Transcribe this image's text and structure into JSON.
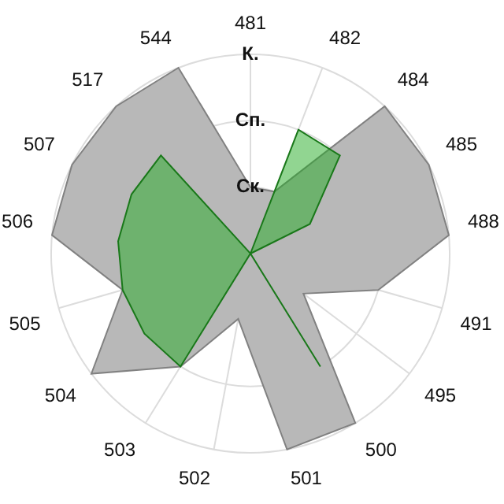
{
  "chart_data": {
    "type": "radar",
    "categories": [
      "481",
      "482",
      "484",
      "485",
      "488",
      "491",
      "495",
      "500",
      "501",
      "502",
      "503",
      "504",
      "505",
      "506",
      "507",
      "517",
      "544"
    ],
    "series": [
      {
        "color": "#b8b8b8",
        "values": [
          1,
          1,
          3,
          3,
          3,
          2,
          1,
          3,
          3,
          1,
          2,
          3,
          2,
          3,
          3,
          3,
          3
        ]
      },
      {
        "color": "#23ac23",
        "values": [
          0,
          2,
          2,
          1,
          0,
          0,
          0,
          2,
          0,
          0,
          2,
          2,
          2,
          2,
          2,
          2,
          0
        ]
      }
    ],
    "ylim": [
      0,
      3
    ],
    "yticks": [
      {
        "value": 1,
        "label": "Ск."
      },
      {
        "value": 2,
        "label": "Сп."
      },
      {
        "value": 3,
        "label": "К."
      }
    ],
    "grid": true,
    "legend": false,
    "marker": "none"
  }
}
